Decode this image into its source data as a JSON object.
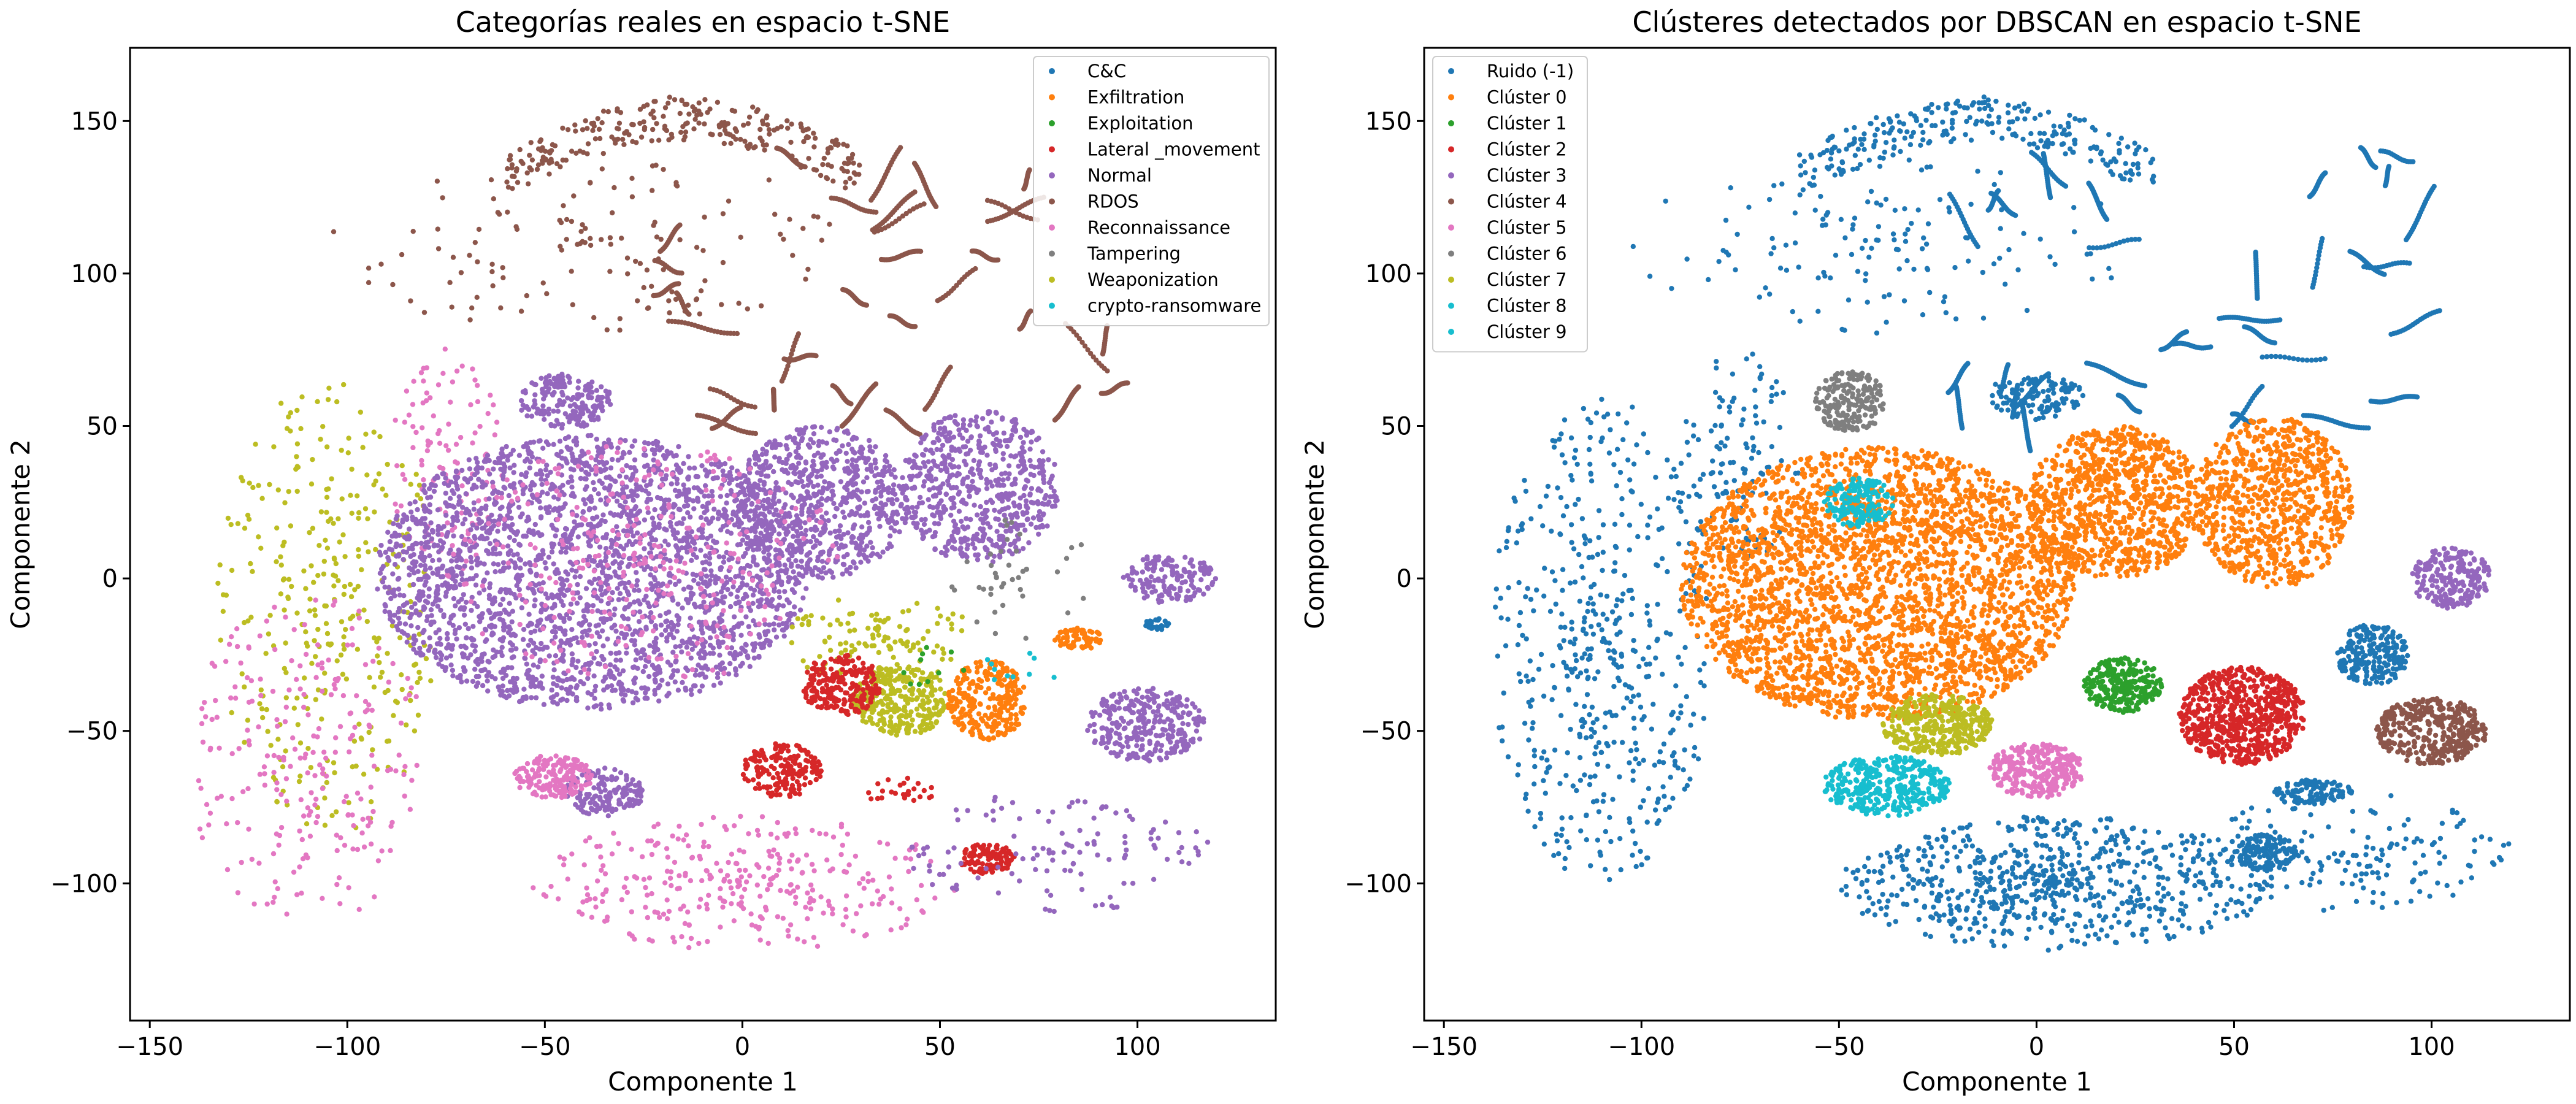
{
  "chart_data": [
    {
      "type": "scatter",
      "title": "Categorías reales en espacio t-SNE",
      "xlabel": "Componente 1",
      "ylabel": "Componente 2",
      "xlim": [
        -155,
        135
      ],
      "ylim": [
        -145,
        174
      ],
      "xticks": [
        -150,
        -100,
        -50,
        0,
        50,
        100
      ],
      "yticks": [
        -100,
        -50,
        0,
        50,
        100,
        150
      ],
      "grid": false,
      "legend_position": "top-right",
      "legend": [
        {
          "name": "C&C",
          "color": "#1f77b4"
        },
        {
          "name": "Exfiltration",
          "color": "#ff7f0e"
        },
        {
          "name": "Exploitation",
          "color": "#2ca02c"
        },
        {
          "name": "Lateral _movement",
          "color": "#d62728"
        },
        {
          "name": "Normal",
          "color": "#9467bd"
        },
        {
          "name": "RDOS",
          "color": "#8c564b"
        },
        {
          "name": "Reconnaissance",
          "color": "#e377c2"
        },
        {
          "name": "Tampering",
          "color": "#7f7f7f"
        },
        {
          "name": "Weaponization",
          "color": "#bcbd22"
        },
        {
          "name": "crypto-ransomware",
          "color": "#17becf"
        }
      ],
      "regions": [
        {
          "color": "#8c564b",
          "kind": "arc",
          "cx": -15,
          "cy": 140,
          "rx": 45,
          "ry": 18,
          "n": 260
        },
        {
          "color": "#8c564b",
          "kind": "strands",
          "cx": 40,
          "cy": 95,
          "rx": 60,
          "ry": 45,
          "n": 34
        },
        {
          "color": "#8c564b",
          "kind": "cloud",
          "cx": -40,
          "cy": 110,
          "rx": 65,
          "ry": 30,
          "n": 140
        },
        {
          "color": "#bcbd22",
          "kind": "cloud",
          "cx": -105,
          "cy": -10,
          "rx": 28,
          "ry": 75,
          "n": 320
        },
        {
          "color": "#e377c2",
          "kind": "cloud",
          "cx": -110,
          "cy": -60,
          "rx": 30,
          "ry": 55,
          "n": 240
        },
        {
          "color": "#e377c2",
          "kind": "cloud",
          "cx": 0,
          "cy": -100,
          "rx": 55,
          "ry": 22,
          "n": 320
        },
        {
          "color": "#e377c2",
          "kind": "cloud",
          "cx": -75,
          "cy": 40,
          "rx": 15,
          "ry": 40,
          "n": 110
        },
        {
          "color": "#9467bd",
          "kind": "blob",
          "cx": -38,
          "cy": 2,
          "rx": 55,
          "ry": 45,
          "n": 2600
        },
        {
          "color": "#9467bd",
          "kind": "blob",
          "cx": 20,
          "cy": 25,
          "rx": 22,
          "ry": 25,
          "n": 700
        },
        {
          "color": "#9467bd",
          "kind": "blob",
          "cx": 60,
          "cy": 30,
          "rx": 20,
          "ry": 25,
          "n": 600
        },
        {
          "color": "#9467bd",
          "kind": "blob",
          "cx": -45,
          "cy": 58,
          "rx": 12,
          "ry": 9,
          "n": 180
        },
        {
          "color": "#9467bd",
          "kind": "blob",
          "cx": 102,
          "cy": -48,
          "rx": 15,
          "ry": 12,
          "n": 300
        },
        {
          "color": "#9467bd",
          "kind": "blob",
          "cx": -35,
          "cy": -70,
          "rx": 10,
          "ry": 8,
          "n": 150
        },
        {
          "color": "#9467bd",
          "kind": "blob",
          "cx": 108,
          "cy": 0,
          "rx": 12,
          "ry": 8,
          "n": 150
        },
        {
          "color": "#e377c2",
          "kind": "cloud",
          "cx": -25,
          "cy": 5,
          "rx": 50,
          "ry": 40,
          "n": 280
        },
        {
          "color": "#e377c2",
          "kind": "blob",
          "cx": -48,
          "cy": -65,
          "rx": 10,
          "ry": 7,
          "n": 170
        },
        {
          "color": "#bcbd22",
          "kind": "blob",
          "cx": 40,
          "cy": -40,
          "rx": 12,
          "ry": 12,
          "n": 300
        },
        {
          "color": "#bcbd22",
          "kind": "cloud",
          "cx": 35,
          "cy": -20,
          "rx": 25,
          "ry": 15,
          "n": 120
        },
        {
          "color": "#ff7f0e",
          "kind": "blob",
          "cx": 62,
          "cy": -40,
          "rx": 10,
          "ry": 13,
          "n": 260
        },
        {
          "color": "#ff7f0e",
          "kind": "blob",
          "cx": 85,
          "cy": -20,
          "rx": 6,
          "ry": 4,
          "n": 70
        },
        {
          "color": "#d62728",
          "kind": "blob",
          "cx": 25,
          "cy": -35,
          "rx": 10,
          "ry": 10,
          "n": 230
        },
        {
          "color": "#d62728",
          "kind": "blob",
          "cx": 10,
          "cy": -63,
          "rx": 10,
          "ry": 9,
          "n": 180
        },
        {
          "color": "#d62728",
          "kind": "blob",
          "cx": 62,
          "cy": -92,
          "rx": 7,
          "ry": 5,
          "n": 110
        },
        {
          "color": "#d62728",
          "kind": "cloud",
          "cx": 40,
          "cy": -70,
          "rx": 10,
          "ry": 5,
          "n": 25
        },
        {
          "color": "#7f7f7f",
          "kind": "cloud",
          "cx": 70,
          "cy": 0,
          "rx": 20,
          "ry": 20,
          "n": 40
        },
        {
          "color": "#1f77b4",
          "kind": "blob",
          "cx": 105,
          "cy": -15,
          "rx": 3,
          "ry": 2,
          "n": 25
        },
        {
          "color": "#17becf",
          "kind": "cloud",
          "cx": 70,
          "cy": -30,
          "rx": 10,
          "ry": 6,
          "n": 10
        },
        {
          "color": "#2ca02c",
          "kind": "cloud",
          "cx": 50,
          "cy": -30,
          "rx": 10,
          "ry": 8,
          "n": 10
        },
        {
          "color": "#9467bd",
          "kind": "cloud",
          "cx": 80,
          "cy": -90,
          "rx": 40,
          "ry": 20,
          "n": 120
        }
      ]
    },
    {
      "type": "scatter",
      "title": "Clústeres detectados por DBSCAN en espacio t-SNE",
      "xlabel": "Componente 1",
      "ylabel": "Componente 2",
      "xlim": [
        -155,
        135
      ],
      "ylim": [
        -145,
        174
      ],
      "xticks": [
        -150,
        -100,
        -50,
        0,
        50,
        100
      ],
      "yticks": [
        -100,
        -50,
        0,
        50,
        100,
        150
      ],
      "grid": false,
      "legend_position": "top-left",
      "legend": [
        {
          "name": "Ruido (-1)",
          "color": "#1f77b4"
        },
        {
          "name": "Clúster 0",
          "color": "#ff7f0e"
        },
        {
          "name": "Clúster 1",
          "color": "#2ca02c"
        },
        {
          "name": "Clúster 2",
          "color": "#d62728"
        },
        {
          "name": "Clúster 3",
          "color": "#9467bd"
        },
        {
          "name": "Clúster 4",
          "color": "#8c564b"
        },
        {
          "name": "Clúster 5",
          "color": "#e377c2"
        },
        {
          "name": "Clúster 6",
          "color": "#7f7f7f"
        },
        {
          "name": "Clúster 7",
          "color": "#bcbd22"
        },
        {
          "name": "Clúster 8",
          "color": "#17becf"
        },
        {
          "name": "Clúster 9",
          "color": "#17becf"
        }
      ],
      "regions": [
        {
          "color": "#1f77b4",
          "kind": "arc",
          "cx": -15,
          "cy": 140,
          "rx": 45,
          "ry": 18,
          "n": 260
        },
        {
          "color": "#1f77b4",
          "kind": "strands",
          "cx": 40,
          "cy": 95,
          "rx": 60,
          "ry": 45,
          "n": 34
        },
        {
          "color": "#1f77b4",
          "kind": "cloud",
          "cx": -40,
          "cy": 110,
          "rx": 65,
          "ry": 30,
          "n": 140
        },
        {
          "color": "#1f77b4",
          "kind": "cloud",
          "cx": -110,
          "cy": -20,
          "rx": 28,
          "ry": 80,
          "n": 500
        },
        {
          "color": "#1f77b4",
          "kind": "cloud",
          "cx": 5,
          "cy": -100,
          "rx": 55,
          "ry": 22,
          "n": 700
        },
        {
          "color": "#1f77b4",
          "kind": "cloud",
          "cx": 80,
          "cy": -90,
          "rx": 40,
          "ry": 20,
          "n": 160
        },
        {
          "color": "#1f77b4",
          "kind": "blob",
          "cx": 85,
          "cy": -25,
          "rx": 9,
          "ry": 10,
          "n": 220
        },
        {
          "color": "#1f77b4",
          "kind": "blob",
          "cx": 58,
          "cy": -90,
          "rx": 8,
          "ry": 6,
          "n": 130
        },
        {
          "color": "#1f77b4",
          "kind": "blob",
          "cx": 70,
          "cy": -70,
          "rx": 10,
          "ry": 4,
          "n": 100
        },
        {
          "color": "#1f77b4",
          "kind": "blob",
          "cx": 0,
          "cy": 60,
          "rx": 12,
          "ry": 8,
          "n": 120
        },
        {
          "color": "#1f77b4",
          "kind": "cloud",
          "cx": -75,
          "cy": 40,
          "rx": 15,
          "ry": 35,
          "n": 120
        },
        {
          "color": "#ff7f0e",
          "kind": "blob",
          "cx": -40,
          "cy": -2,
          "rx": 50,
          "ry": 45,
          "n": 3000
        },
        {
          "color": "#ff7f0e",
          "kind": "blob",
          "cx": 20,
          "cy": 25,
          "rx": 22,
          "ry": 25,
          "n": 900
        },
        {
          "color": "#ff7f0e",
          "kind": "blob",
          "cx": 60,
          "cy": 25,
          "rx": 20,
          "ry": 28,
          "n": 800
        },
        {
          "color": "#2ca02c",
          "kind": "blob",
          "cx": 22,
          "cy": -35,
          "rx": 10,
          "ry": 9,
          "n": 250
        },
        {
          "color": "#d62728",
          "kind": "blob",
          "cx": 52,
          "cy": -45,
          "rx": 16,
          "ry": 16,
          "n": 650
        },
        {
          "color": "#9467bd",
          "kind": "blob",
          "cx": 105,
          "cy": 0,
          "rx": 10,
          "ry": 10,
          "n": 220
        },
        {
          "color": "#8c564b",
          "kind": "blob",
          "cx": 100,
          "cy": -50,
          "rx": 14,
          "ry": 11,
          "n": 380
        },
        {
          "color": "#e377c2",
          "kind": "blob",
          "cx": 0,
          "cy": -63,
          "rx": 12,
          "ry": 9,
          "n": 300
        },
        {
          "color": "#7f7f7f",
          "kind": "blob",
          "cx": -47,
          "cy": 58,
          "rx": 9,
          "ry": 10,
          "n": 200
        },
        {
          "color": "#bcbd22",
          "kind": "blob",
          "cx": -25,
          "cy": -48,
          "rx": 14,
          "ry": 10,
          "n": 360
        },
        {
          "color": "#17becf",
          "kind": "blob",
          "cx": -45,
          "cy": 25,
          "rx": 9,
          "ry": 8,
          "n": 160
        },
        {
          "color": "#17becf",
          "kind": "blob",
          "cx": -38,
          "cy": -68,
          "rx": 16,
          "ry": 10,
          "n": 360
        }
      ]
    }
  ]
}
